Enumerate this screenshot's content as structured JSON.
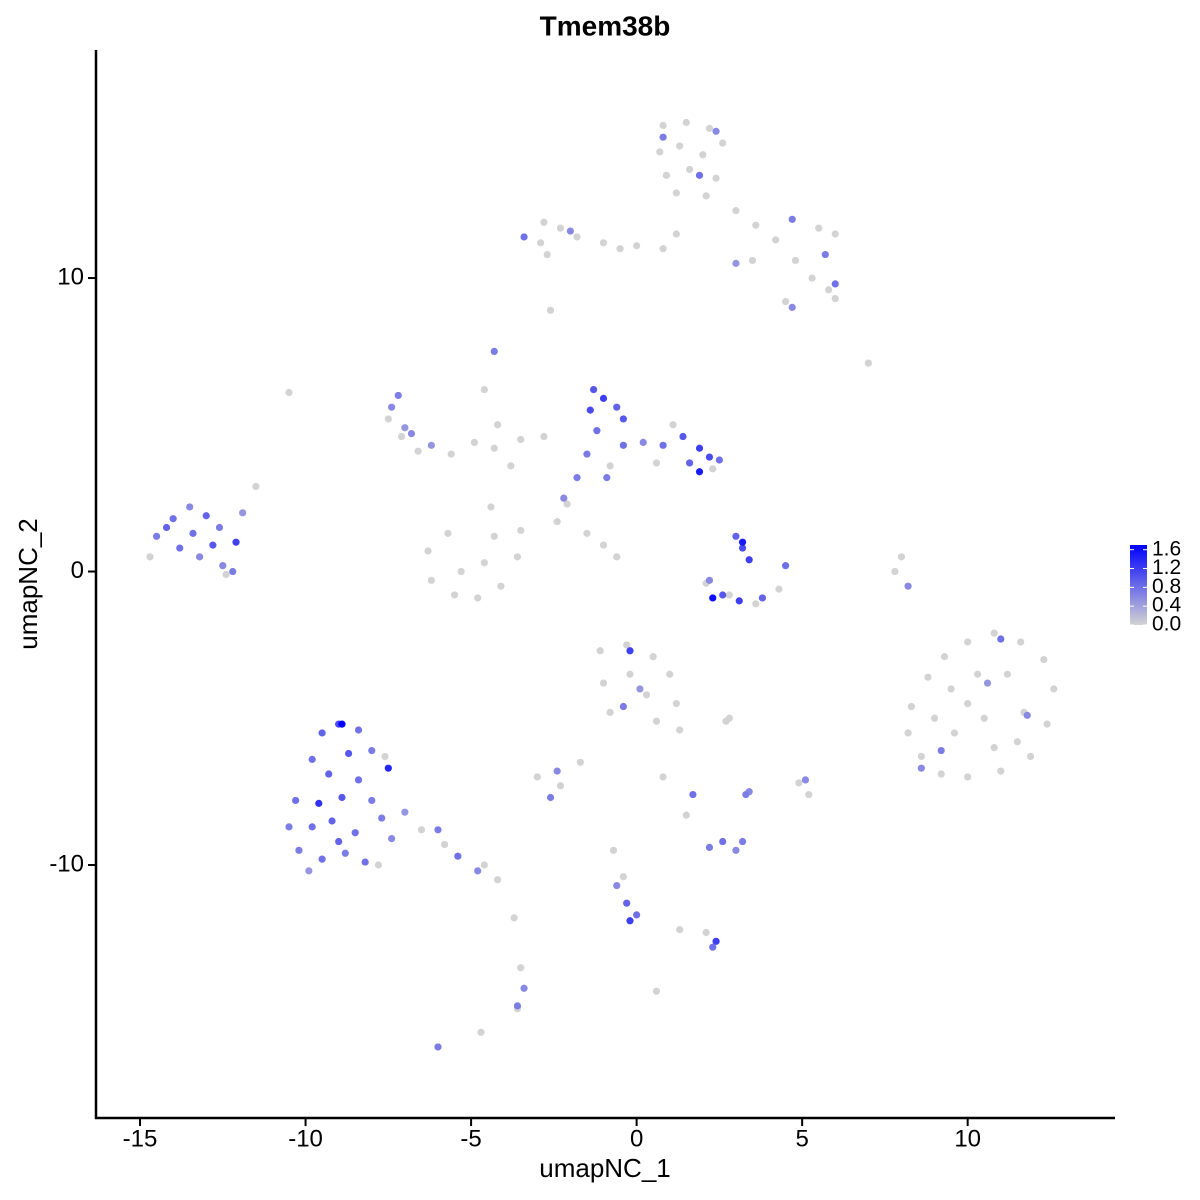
{
  "chart_data": {
    "type": "scatter",
    "title": "Tmem38b",
    "x_label": "umapNC_1",
    "y_label": "umapNC_2",
    "xlim": [
      -16.33,
      14.45
    ],
    "ylim": [
      -18.62,
      17.77
    ],
    "xticks": [
      -15,
      -10,
      -5,
      0,
      5,
      10
    ],
    "yticks": [
      -10,
      0,
      10
    ],
    "clim": [
      0,
      1.7
    ],
    "cticks": [
      {
        "value": 0,
        "label": "0.0"
      },
      0.4,
      0.8,
      1.2,
      1.6
    ],
    "low_color": "#d3d3d3",
    "high_color": "#0000ff",
    "grid": false,
    "x": [
      0.8,
      1.5,
      2.2,
      0.7,
      1.3,
      2,
      2.6,
      0.9,
      1.6,
      2.4,
      1.2,
      2.1,
      3,
      3.6,
      4.2,
      4.8,
      5.3,
      5.8,
      6,
      4.5,
      5.5,
      6,
      1.2,
      0.8,
      3.5,
      -2.8,
      -2.3,
      -2.9,
      -1.8,
      -1,
      -0.5,
      0,
      -2.7,
      -2.6,
      7,
      -7.5,
      -7.1,
      -6.6,
      -5.6,
      -4.9,
      -4.3,
      -3.5,
      -4.6,
      -4.2,
      -3.8,
      -2.8,
      -6.3,
      -6.2,
      -5.5,
      -4.8,
      -4.1,
      -3.6,
      -3.5,
      -4.6,
      -5.3,
      -5.7,
      -4.4,
      -4.3,
      -2.4,
      -1.5,
      -1,
      -0.6,
      8,
      7.8,
      8.3,
      8.8,
      9.3,
      10,
      10.8,
      11.6,
      12.3,
      12.6,
      12.4,
      11.9,
      11,
      10,
      9.2,
      8.6,
      8.2,
      9.5,
      10.3,
      11.2,
      11.7,
      10.5,
      9.6,
      10.8,
      9,
      11.5,
      10,
      -1.1,
      -0.3,
      0.5,
      1,
      1.2,
      1.3,
      -1,
      -0.2,
      0.3,
      -0.8,
      0.6,
      2.7,
      -3,
      -2.3,
      -1.7,
      0.8,
      1.5,
      -3.7,
      -3.5,
      -3.6,
      -4.7,
      0.6,
      -0.7,
      -0.4,
      1.3,
      2.1,
      4.9,
      5.2,
      2.8,
      -6.5,
      -5.8,
      -4.6,
      -4.2,
      -7.6,
      -7.8,
      -14.7,
      -12.4,
      -11.5,
      -10.5,
      -0.8,
      0.6,
      1.1,
      2.3,
      -2.1,
      2.1,
      2.8,
      3.6,
      4.3,
      -14.5,
      -14,
      -13.5,
      -13,
      -12.6,
      -13.8,
      -13.2,
      -12.8,
      -12.2,
      -14.2,
      -13.4,
      -12.5,
      -11.9,
      -12.1,
      -9.5,
      -9,
      -8.4,
      -9.8,
      -8.7,
      -8,
      -9.3,
      -8.4,
      -7.5,
      -10.3,
      -9.6,
      -8.9,
      -8,
      -10.5,
      -9.8,
      -9.2,
      -8.5,
      -7.7,
      -10.2,
      -9.5,
      -8.8,
      -8.2,
      -7.4,
      -7,
      -6,
      -5.4,
      -4.8,
      -9.9,
      -9,
      -8.9,
      -7.4,
      -7.2,
      -6.8,
      -6.2,
      -4.3,
      -7,
      -1.3,
      -1,
      -1.4,
      -0.6,
      -1.2,
      -0.4,
      -1.5,
      -0.9,
      0.2,
      0.8,
      1.4,
      1.9,
      2.2,
      1.6,
      2.5,
      1.9,
      -2.2,
      -1.8,
      -0.4,
      3,
      3.2,
      3.4,
      3.2,
      2.6,
      2.3,
      3.1,
      3.8,
      4.5,
      2.2,
      2.4,
      0.8,
      1.9,
      4.7,
      5.7,
      4.7,
      -3.4,
      -2,
      3,
      6,
      11,
      9.2,
      8.6,
      11.8,
      10.6,
      -0.2,
      -0.4,
      0.1,
      -2.6,
      -2.4,
      1.7,
      2.2,
      2.6,
      3,
      3.2,
      -0.3,
      0,
      -0.2,
      2.4,
      2.3,
      -3.6,
      -3.4,
      -6,
      -0.6,
      5.1,
      3.4,
      3.3,
      8.2
    ],
    "y": [
      15.2,
      15.3,
      15.1,
      14.3,
      14.5,
      14.2,
      14.6,
      13.5,
      13.7,
      13.4,
      12.9,
      12.8,
      12.3,
      11.8,
      11.3,
      10.6,
      10,
      9.6,
      9.3,
      9.2,
      11.7,
      11.5,
      11.5,
      11,
      10.6,
      11.9,
      11.7,
      11.2,
      11.4,
      11.2,
      11,
      11.1,
      10.8,
      8.9,
      7.1,
      5.2,
      4.6,
      4.1,
      4,
      4.4,
      4.2,
      4.5,
      6.2,
      5,
      3.6,
      4.6,
      0.7,
      -0.3,
      -0.8,
      -0.9,
      -0.5,
      0.5,
      1.4,
      0.3,
      0,
      1.3,
      2.2,
      1.2,
      1.7,
      1.3,
      0.9,
      0.5,
      0.5,
      0,
      -4.6,
      -3.6,
      -2.9,
      -2.4,
      -2.1,
      -2.4,
      -3,
      -4,
      -5.2,
      -6.3,
      -6.8,
      -7,
      -6.9,
      -6.3,
      -5.5,
      -4,
      -3.5,
      -3.5,
      -4.8,
      -5,
      -5.5,
      -6,
      -5,
      -5.8,
      -4.5,
      -2.7,
      -2.5,
      -2.9,
      -3.5,
      -4.5,
      -5.4,
      -3.8,
      -3.5,
      -4.2,
      -4.8,
      -5.1,
      -5.1,
      -7,
      -7.3,
      -6.5,
      -7,
      -8.3,
      -11.8,
      -13.5,
      -14.9,
      -15.7,
      -14.3,
      -9.5,
      -10.4,
      -12.2,
      -12.3,
      -7.2,
      -7.6,
      -5,
      -8.8,
      -9.3,
      -10,
      -10.5,
      -6.3,
      -10,
      0.5,
      -0.1,
      2.9,
      6.1,
      3.6,
      3.7,
      5,
      3.5,
      2.3,
      -0.4,
      -0.8,
      -1.1,
      -0.6,
      1.2,
      1.8,
      2.2,
      1.9,
      1.5,
      0.8,
      0.5,
      0.9,
      0,
      1.5,
      1.3,
      0.2,
      2,
      1,
      -5.5,
      -5.2,
      -5.4,
      -6.4,
      -6.2,
      -6.1,
      -6.9,
      -7.1,
      -6.7,
      -7.8,
      -7.9,
      -7.7,
      -7.8,
      -8.7,
      -8.7,
      -8.5,
      -8.9,
      -8.4,
      -9.5,
      -9.8,
      -9.6,
      -9.9,
      -9.1,
      -8.2,
      -8.8,
      -9.7,
      -10.2,
      -10.2,
      -9.2,
      -5.2,
      5.6,
      6,
      4.7,
      4.3,
      7.5,
      4.9,
      6.2,
      5.9,
      5.5,
      5.6,
      4.8,
      4.3,
      4,
      3.2,
      4.4,
      4.3,
      4.6,
      4.2,
      3.9,
      3.7,
      3.8,
      3.4,
      2.5,
      3.2,
      5.2,
      1.2,
      0.8,
      0.4,
      1,
      -0.8,
      -0.9,
      -1,
      -0.9,
      0.2,
      -0.3,
      15,
      14.8,
      13.5,
      12,
      10.8,
      9,
      11.4,
      11.6,
      10.5,
      9.8,
      -2.3,
      -6.1,
      -6.7,
      -4.9,
      -3.8,
      -2.7,
      -4.6,
      -4,
      -7.7,
      -6.8,
      -7.6,
      -9.4,
      -9.2,
      -9.5,
      -9.2,
      -11.3,
      -11.7,
      -11.9,
      -12.6,
      -12.8,
      -14.8,
      -14.2,
      -16.2,
      -10.7,
      -7.1,
      -7.5,
      -7.6,
      -0.5
    ],
    "values": [
      0,
      0,
      0,
      0,
      0,
      0,
      0,
      0,
      0,
      0,
      0,
      0,
      0,
      0,
      0,
      0,
      0,
      0,
      0,
      0,
      0,
      0,
      0,
      0,
      0,
      0,
      0,
      0,
      0,
      0,
      0,
      0,
      0,
      0,
      0,
      0,
      0,
      0,
      0,
      0,
      0,
      0,
      0,
      0,
      0,
      0,
      0,
      0,
      0,
      0,
      0,
      0,
      0,
      0,
      0,
      0,
      0,
      0,
      0,
      0,
      0,
      0,
      0,
      0,
      0,
      0,
      0,
      0,
      0,
      0,
      0,
      0,
      0,
      0,
      0,
      0,
      0,
      0,
      0,
      0,
      0,
      0,
      0,
      0,
      0,
      0,
      0,
      0,
      0,
      0,
      0,
      0,
      0,
      0,
      0,
      0,
      0,
      0,
      0,
      0,
      0,
      0,
      0,
      0,
      0,
      0,
      0,
      0,
      0,
      0,
      0,
      0,
      0,
      0,
      0,
      0,
      0,
      0,
      0,
      0,
      0,
      0,
      0,
      0,
      0,
      0,
      0,
      0,
      0,
      0,
      0,
      0,
      0,
      0,
      0,
      0,
      0,
      0.7,
      0.8,
      0.6,
      0.9,
      0.7,
      0.8,
      0.6,
      1,
      0.7,
      0.9,
      0.8,
      0.6,
      0.5,
      1.2,
      0.9,
      1.1,
      0.8,
      0.8,
      1,
      0.7,
      0.9,
      0.8,
      1.4,
      0.8,
      1.3,
      1,
      0.7,
      0.7,
      0.8,
      0.9,
      0.8,
      0.7,
      0.7,
      0.8,
      0.7,
      0.8,
      0.6,
      0.5,
      0.7,
      0.8,
      0.6,
      0.5,
      0.9,
      1.7,
      0.6,
      0.7,
      0.6,
      0.5,
      0.7,
      0.5,
      1,
      1.2,
      1.1,
      0.9,
      0.8,
      0.8,
      0.7,
      0.7,
      0.6,
      0.8,
      1,
      1.2,
      1.1,
      0.9,
      0.8,
      1.5,
      0.6,
      0.7,
      1,
      0.9,
      1.1,
      1.2,
      1.5,
      1,
      1.6,
      1.2,
      0.9,
      0.8,
      0.6,
      0.6,
      0.7,
      0.8,
      0.7,
      0.7,
      0.6,
      0.8,
      0.6,
      0.5,
      0.8,
      0.8,
      0.7,
      0.6,
      0.6,
      0.5,
      1.2,
      0.7,
      0.5,
      0.7,
      0.6,
      0.8,
      0.7,
      0.8,
      0.6,
      0.7,
      0.9,
      0.8,
      1.2,
      1.2,
      0.8,
      0.7,
      0.6,
      0.7,
      0.6,
      0.6,
      0.6,
      0.7,
      0.6
    ]
  }
}
